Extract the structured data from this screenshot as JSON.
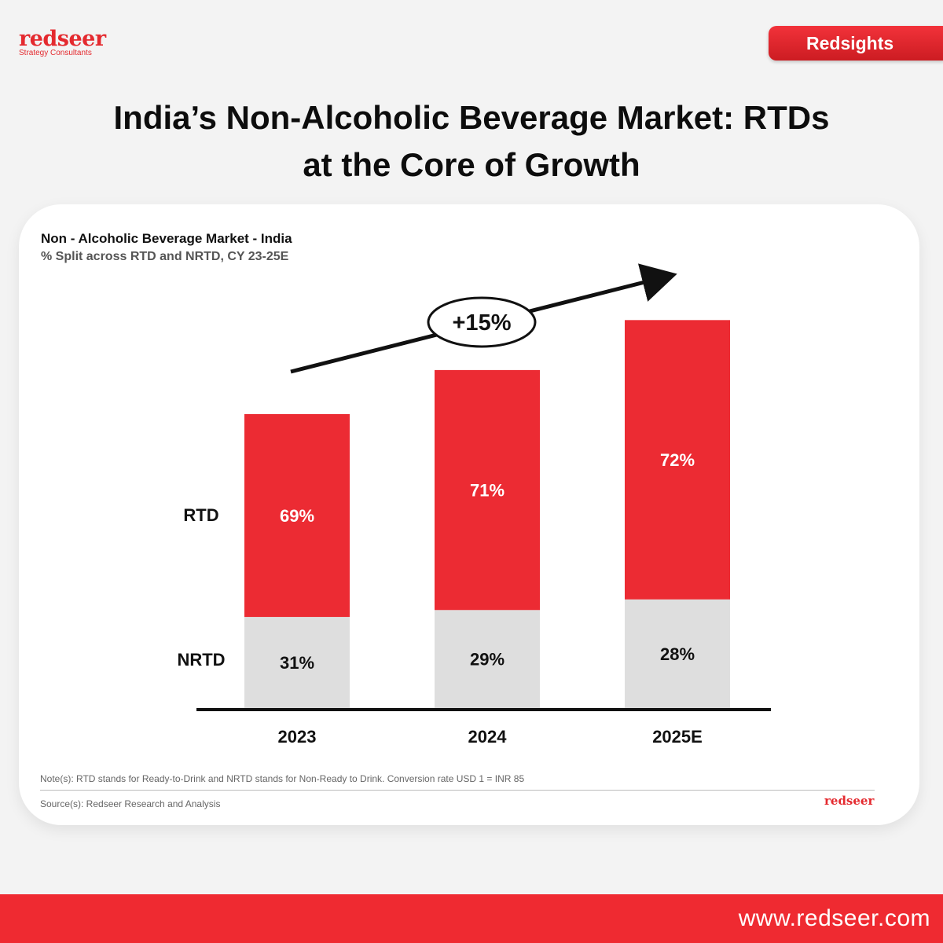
{
  "brand": {
    "name": "redseer",
    "tagline": "Strategy Consultants",
    "badge": "Redsights"
  },
  "headline": {
    "line1": "India’s Non-Alcoholic Beverage Market: RTDs",
    "line2": "at the Core of Growth"
  },
  "colors": {
    "accent": "#ec2b33",
    "rtd": "#ec2b33",
    "nrtd": "#dedede"
  },
  "chart_data": {
    "type": "bar",
    "stacked": true,
    "title": "Non - Alcoholic Beverage Market - India",
    "subtitle": "% Split across RTD and NRTD, CY 23-25E",
    "categories": [
      "2023",
      "2024",
      "2025E"
    ],
    "series": [
      {
        "name": "NRTD",
        "values": [
          31,
          29,
          28
        ],
        "labels": [
          "31%",
          "29%",
          "28%"
        ]
      },
      {
        "name": "RTD",
        "values": [
          69,
          71,
          72
        ],
        "labels": [
          "69%",
          "71%",
          "72%"
        ]
      }
    ],
    "relative_totals": [
      100,
      115,
      132
    ],
    "growth_annotation": "+15%"
  },
  "notes": {
    "note": "Note(s): RTD stands for Ready-to-Drink and NRTD stands for Non-Ready to Drink. Conversion rate USD 1 = INR 85",
    "source": "Source(s): Redseer Research and Analysis",
    "logo": "redseer"
  },
  "footer": {
    "url": "www.redseer.com"
  }
}
